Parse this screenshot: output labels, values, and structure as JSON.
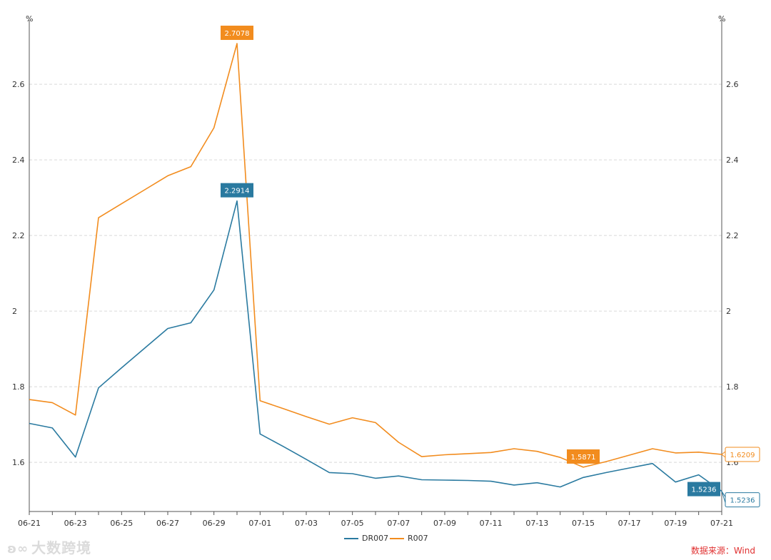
{
  "chart_data": {
    "type": "line",
    "unit_left": "%",
    "unit_right": "%",
    "categories": [
      "06-21",
      "06-22",
      "06-23",
      "06-24",
      "06-25",
      "06-26",
      "06-27",
      "06-28",
      "06-29",
      "06-30",
      "07-01",
      "07-02",
      "07-03",
      "07-04",
      "07-05",
      "07-06",
      "07-07",
      "07-08",
      "07-09",
      "07-10",
      "07-11",
      "07-12",
      "07-13",
      "07-14",
      "07-15",
      "07-16",
      "07-17",
      "07-18",
      "07-19",
      "07-20",
      "07-21"
    ],
    "xtick_labels": [
      "06-21",
      "06-23",
      "06-25",
      "06-27",
      "06-29",
      "07-01",
      "07-03",
      "07-05",
      "07-07",
      "07-09",
      "07-11",
      "07-13",
      "07-15",
      "07-17",
      "07-19",
      "07-21"
    ],
    "ylim": [
      1.47,
      2.77
    ],
    "yticks": [
      1.6,
      1.8,
      2,
      2.2,
      2.4,
      2.6
    ],
    "ytick_labels": [
      "1.6",
      "1.8",
      "2",
      "2.2",
      "2.4",
      "2.6"
    ],
    "series": [
      {
        "name": "DR007",
        "color": "#2a7aa0",
        "values": [
          1.703,
          1.691,
          1.614,
          1.797,
          1.85,
          1.902,
          1.954,
          1.969,
          2.056,
          2.2914,
          1.675,
          1.642,
          1.608,
          1.573,
          1.57,
          1.558,
          1.564,
          1.554,
          1.553,
          1.552,
          1.55,
          1.54,
          1.546,
          1.535,
          1.56,
          1.573,
          1.585,
          1.597,
          1.548,
          1.567,
          1.5236
        ]
      },
      {
        "name": "R007",
        "color": "#f28c1e",
        "values": [
          1.766,
          1.758,
          1.725,
          2.247,
          2.284,
          2.321,
          2.358,
          2.382,
          2.485,
          2.7078,
          1.763,
          1.742,
          1.721,
          1.701,
          1.718,
          1.705,
          1.653,
          1.615,
          1.62,
          1.623,
          1.626,
          1.636,
          1.629,
          1.613,
          1.5871,
          1.602,
          1.619,
          1.636,
          1.625,
          1.627,
          1.6209
        ]
      }
    ],
    "annotations": [
      {
        "series": "R007",
        "category": "06-30",
        "label": "2.7078",
        "style": "filled"
      },
      {
        "series": "DR007",
        "category": "06-30",
        "label": "2.2914",
        "style": "filled"
      },
      {
        "series": "R007",
        "category": "07-15",
        "label": "1.5871",
        "style": "filled"
      },
      {
        "series": "DR007",
        "category": "07-21",
        "label": "1.5236",
        "style": "filled"
      },
      {
        "series": "R007",
        "category": "07-21",
        "label": "1.6209",
        "style": "outline"
      },
      {
        "series": "DR007",
        "category": "07-21",
        "label": "1.5236",
        "style": "outline"
      }
    ],
    "legend": [
      "DR007",
      "R007"
    ],
    "legend_position": "bottom-center",
    "grid": true
  },
  "footer": {
    "source": "数据来源：Wind",
    "watermark": "大数跨境",
    "watermark_icon": "ʚ∞"
  }
}
